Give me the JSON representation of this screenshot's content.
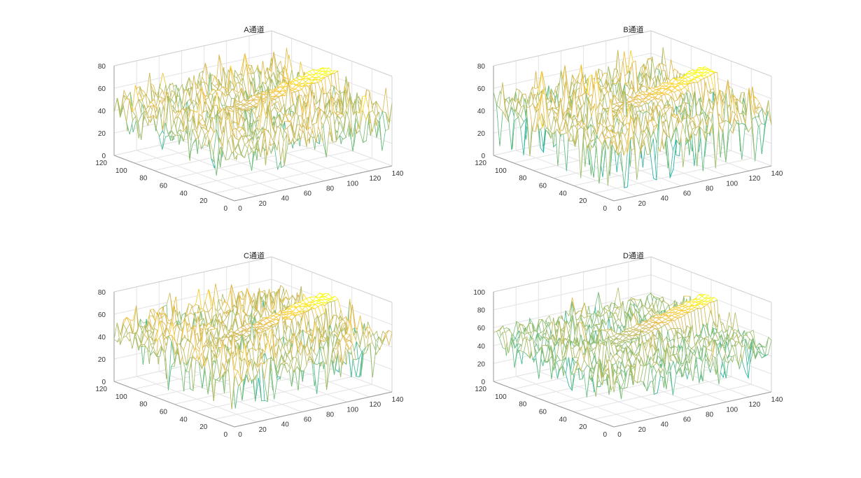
{
  "chart_data": [
    {
      "type": "surface",
      "title": "A通道",
      "x_ticks": [
        0,
        20,
        40,
        60,
        80,
        100,
        120,
        140
      ],
      "y_ticks": [
        0,
        20,
        40,
        60,
        80,
        100,
        120
      ],
      "z_ticks": [
        0,
        20,
        40,
        60,
        80
      ],
      "xlim": [
        0,
        140
      ],
      "ylim": [
        0,
        120
      ],
      "zlim": [
        0,
        80
      ],
      "grid": "on",
      "colormap": "parula",
      "surface_description_values": {
        "noise_region_mean_z": 45,
        "noise_region_min_z": 15,
        "noise_region_max_z": 70,
        "ridge_start_z": 45,
        "ridge_end_z": 65
      }
    },
    {
      "type": "surface",
      "title": "B通道",
      "x_ticks": [
        0,
        20,
        40,
        60,
        80,
        100,
        120,
        140
      ],
      "y_ticks": [
        0,
        20,
        40,
        60,
        80,
        100,
        120
      ],
      "z_ticks": [
        0,
        20,
        40,
        60,
        80
      ],
      "xlim": [
        0,
        140
      ],
      "ylim": [
        0,
        120
      ],
      "zlim": [
        0,
        80
      ],
      "grid": "on",
      "colormap": "parula",
      "surface_description_values": {
        "noise_region_mean_z": 45,
        "noise_region_min_z": 5,
        "noise_region_max_z": 72,
        "ridge_start_z": 45,
        "ridge_end_z": 65
      }
    },
    {
      "type": "surface",
      "title": "C通道",
      "x_ticks": [
        0,
        20,
        40,
        60,
        80,
        100,
        120,
        140
      ],
      "y_ticks": [
        0,
        20,
        40,
        60,
        80,
        100,
        120
      ],
      "z_ticks": [
        0,
        20,
        40,
        60,
        80
      ],
      "xlim": [
        0,
        140
      ],
      "ylim": [
        0,
        120
      ],
      "zlim": [
        0,
        80
      ],
      "grid": "on",
      "colormap": "parula",
      "surface_description_values": {
        "noise_region_mean_z": 45,
        "noise_region_min_z": 10,
        "noise_region_max_z": 70,
        "ridge_start_z": 45,
        "ridge_end_z": 65
      }
    },
    {
      "type": "surface",
      "title": "D通道",
      "x_ticks": [
        0,
        20,
        40,
        60,
        80,
        100,
        120,
        140
      ],
      "y_ticks": [
        0,
        20,
        40,
        60,
        80,
        100,
        120
      ],
      "z_ticks": [
        0,
        20,
        40,
        60,
        80,
        100
      ],
      "xlim": [
        0,
        140
      ],
      "ylim": [
        0,
        120
      ],
      "zlim": [
        0,
        100
      ],
      "grid": "on",
      "colormap": "parula",
      "surface_description_values": {
        "noise_region_mean_z": 50,
        "noise_region_min_z": 20,
        "noise_region_max_z": 75,
        "ridge_start_z": 50,
        "ridge_end_z": 80
      }
    }
  ]
}
